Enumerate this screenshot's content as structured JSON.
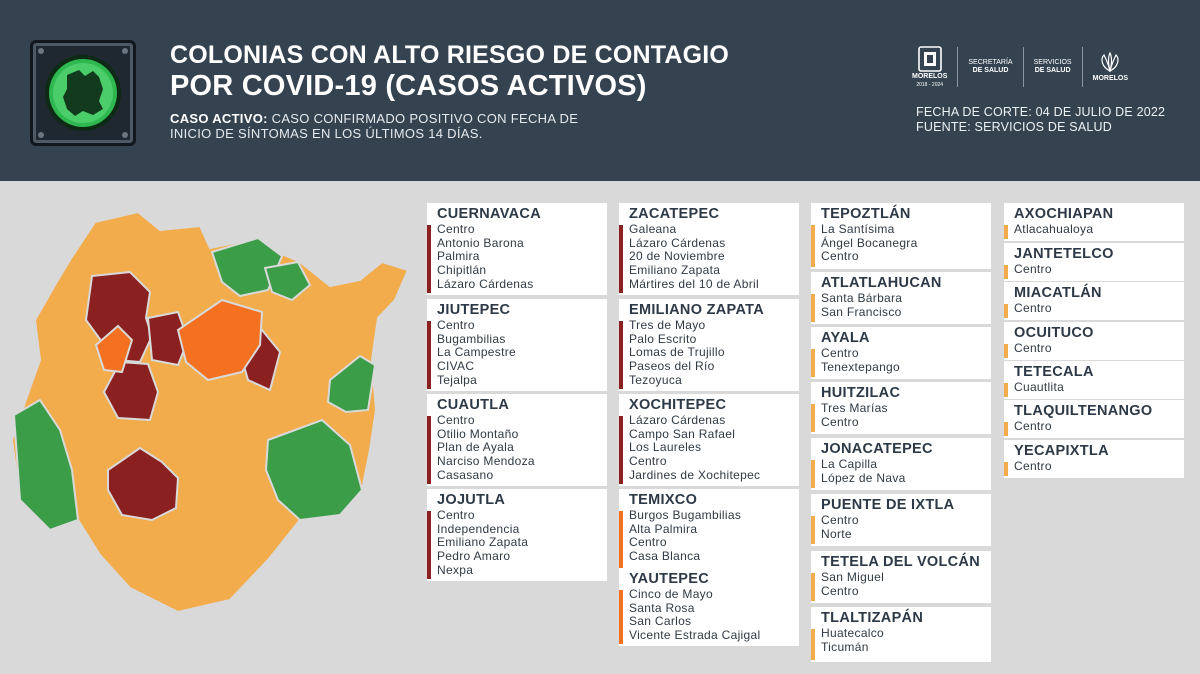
{
  "header": {
    "title_line1": "COLONIAS CON ALTO RIESGO DE CONTAGIO",
    "title_line2": "POR COVID-19 (CASOS ACTIVOS)",
    "definition_term": "CASO ACTIVO:",
    "definition_line1": " CASO CONFIRMADO POSITIVO CON FECHA DE",
    "definition_line2": "INICIO DE SÍNTOMAS EN LOS ÚLTIMOS 14 DÍAS.",
    "cutoff": "FECHA DE CORTE: 04 DE JULIO DE 2022",
    "source": "FUENTE: SERVICIOS DE SALUD",
    "logos": {
      "morelos": "MORELOS",
      "morelos_years": "2018 - 2024",
      "secretaria_1": "SECRETARÍA",
      "secretaria_2": "DE SALUD",
      "servicios_1": "SERVICIOS",
      "servicios_2": "DE SALUD",
      "morelos2": "MORELOS"
    }
  },
  "colors": {
    "header_bg": "#354350",
    "dark_red": "#8b2020",
    "orange": "#f47121",
    "yellow": "#f2ac4c",
    "green": "#3b9d48"
  },
  "municipios": [
    {
      "name": "CUERNAVACA",
      "level": "dark_red",
      "colonias": [
        "Centro",
        "Antonio Barona",
        "Palmira",
        "Chipitlán",
        "Lázaro Cárdenas"
      ]
    },
    {
      "name": "JIUTEPEC",
      "level": "dark_red",
      "colonias": [
        "Centro",
        "Bugambilias",
        "La Campestre",
        "CIVAC",
        "Tejalpa"
      ]
    },
    {
      "name": "CUAUTLA",
      "level": "dark_red",
      "colonias": [
        "Centro",
        "Otilio Montaño",
        "Plan de Ayala",
        "Narciso Mendoza",
        "Casasano"
      ]
    },
    {
      "name": "JOJUTLA",
      "level": "dark_red",
      "colonias": [
        "Centro",
        "Independencia",
        "Emiliano Zapata",
        "Pedro Amaro",
        "Nexpa"
      ]
    },
    {
      "name": "ZACATEPEC",
      "level": "dark_red",
      "colonias": [
        "Galeana",
        "Lázaro Cárdenas",
        "20 de Noviembre",
        "Emiliano Zapata",
        "Mártires del 10 de Abril"
      ]
    },
    {
      "name": "EMILIANO ZAPATA",
      "level": "dark_red",
      "colonias": [
        "Tres de Mayo",
        "Palo Escrito",
        "Lomas de Trujillo",
        "Paseos del Río",
        "Tezoyuca"
      ]
    },
    {
      "name": "XOCHITEPEC",
      "level": "dark_red",
      "colonias": [
        "Lázaro Cárdenas",
        "Campo San Rafael",
        "Los Laureles",
        "Centro",
        "Jardines de Xochitepec"
      ]
    },
    {
      "name": "TEMIXCO",
      "level": "orange",
      "colonias": [
        "Burgos Bugambilias",
        "Alta Palmira",
        "Centro",
        "Casa Blanca"
      ]
    },
    {
      "name": "YAUTEPEC",
      "level": "orange",
      "colonias": [
        "Cinco de Mayo",
        "Santa Rosa",
        "San Carlos",
        "Vicente Estrada Cajigal"
      ]
    },
    {
      "name": "TEPOZTLÁN",
      "level": "yellow",
      "colonias": [
        "La Santísima",
        "Ángel Bocanegra",
        "Centro"
      ]
    },
    {
      "name": "ATLATLAHUCAN",
      "level": "yellow",
      "colonias": [
        "Santa Bárbara",
        "San Francisco"
      ]
    },
    {
      "name": "AYALA",
      "level": "yellow",
      "colonias": [
        "Centro",
        "Tenextepango"
      ]
    },
    {
      "name": "HUITZILAC",
      "level": "yellow",
      "colonias": [
        "Tres Marías",
        "Centro"
      ]
    },
    {
      "name": "JONACATEPEC",
      "level": "yellow",
      "colonias": [
        "La Capilla",
        "López de Nava"
      ]
    },
    {
      "name": "PUENTE DE IXTLA",
      "level": "yellow",
      "colonias": [
        "Centro",
        "Norte"
      ]
    },
    {
      "name": "TETELA DEL VOLCÁN",
      "level": "yellow",
      "colonias": [
        "San Miguel",
        "Centro"
      ]
    },
    {
      "name": "TLALTIZAPÁN",
      "level": "yellow",
      "colonias": [
        "Huatecalco",
        "Ticumán"
      ]
    },
    {
      "name": "AXOCHIAPAN",
      "level": "yellow",
      "colonias": [
        "Atlacahualoya"
      ]
    },
    {
      "name": "JANTETELCO",
      "level": "yellow",
      "colonias": [
        "Centro"
      ]
    },
    {
      "name": "MIACATLÁN",
      "level": "yellow",
      "colonias": [
        "Centro"
      ]
    },
    {
      "name": "OCUITUCO",
      "level": "yellow",
      "colonias": [
        "Centro"
      ]
    },
    {
      "name": "TETECALA",
      "level": "yellow",
      "colonias": [
        "Cuautlita"
      ]
    },
    {
      "name": "TLAQUILTENANGO",
      "level": "yellow",
      "colonias": [
        "Centro"
      ]
    },
    {
      "name": "YECAPIXTLA",
      "level": "yellow",
      "colonias": [
        "Centro"
      ]
    }
  ]
}
